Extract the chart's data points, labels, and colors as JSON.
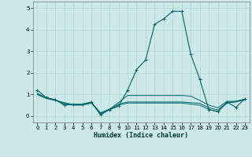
{
  "xlabel": "Humidex (Indice chaleur)",
  "xlim": [
    -0.5,
    23.5
  ],
  "ylim": [
    -0.3,
    5.3
  ],
  "yticks": [
    0,
    1,
    2,
    3,
    4,
    5
  ],
  "xticks": [
    0,
    1,
    2,
    3,
    4,
    5,
    6,
    7,
    8,
    9,
    10,
    11,
    12,
    13,
    14,
    15,
    16,
    17,
    18,
    19,
    20,
    21,
    22,
    23
  ],
  "background_color": "#cce8e8",
  "grid_color": "#b8d8d8",
  "line_color": "#006666",
  "lines": [
    {
      "x": [
        0,
        1,
        2,
        3,
        4,
        5,
        6,
        7,
        8,
        9,
        10,
        11,
        12,
        13,
        14,
        15,
        16,
        17,
        18,
        19,
        20,
        21,
        22,
        23
      ],
      "y": [
        1.2,
        0.85,
        0.75,
        0.5,
        0.55,
        0.55,
        0.65,
        0.05,
        0.3,
        0.45,
        1.2,
        2.15,
        2.6,
        4.25,
        4.5,
        4.85,
        4.85,
        2.85,
        1.7,
        0.3,
        0.2,
        0.65,
        0.4,
        0.8
      ],
      "marker": true
    },
    {
      "x": [
        0,
        1,
        2,
        3,
        4,
        5,
        6,
        7,
        8,
        9,
        10,
        11,
        12,
        13,
        14,
        15,
        16,
        17,
        18,
        19,
        20,
        21,
        22,
        23
      ],
      "y": [
        1.05,
        0.85,
        0.75,
        0.55,
        0.5,
        0.5,
        0.6,
        0.1,
        0.28,
        0.5,
        0.6,
        0.6,
        0.6,
        0.6,
        0.6,
        0.6,
        0.6,
        0.55,
        0.5,
        0.3,
        0.2,
        0.6,
        0.65,
        0.75
      ],
      "marker": false
    },
    {
      "x": [
        0,
        1,
        2,
        3,
        4,
        5,
        6,
        7,
        8,
        9,
        10,
        11,
        12,
        13,
        14,
        15,
        16,
        17,
        18,
        19,
        20,
        21,
        22,
        23
      ],
      "y": [
        1.0,
        0.82,
        0.72,
        0.58,
        0.52,
        0.52,
        0.62,
        0.12,
        0.3,
        0.55,
        0.65,
        0.65,
        0.65,
        0.65,
        0.65,
        0.65,
        0.65,
        0.62,
        0.58,
        0.38,
        0.28,
        0.62,
        0.68,
        0.78
      ],
      "marker": false
    },
    {
      "x": [
        0,
        1,
        2,
        3,
        4,
        5,
        6,
        7,
        8,
        9,
        10,
        11,
        12,
        13,
        14,
        15,
        16,
        17,
        18,
        19,
        20,
        21,
        22,
        23
      ],
      "y": [
        1.0,
        0.82,
        0.72,
        0.62,
        0.52,
        0.52,
        0.62,
        0.15,
        0.32,
        0.62,
        0.95,
        0.95,
        0.95,
        0.95,
        0.95,
        0.95,
        0.95,
        0.92,
        0.72,
        0.5,
        0.38,
        0.68,
        0.68,
        0.78
      ],
      "marker": false
    }
  ]
}
